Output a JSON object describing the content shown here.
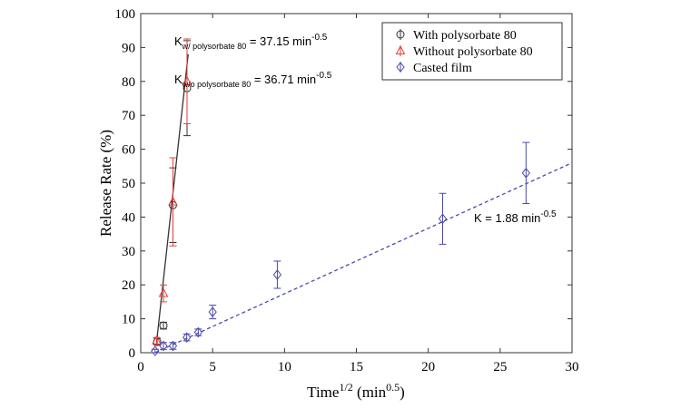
{
  "chart_data": {
    "type": "scatter",
    "x_label": {
      "main": "Time",
      "sup": "1/2",
      "rest": " (min",
      "sup2": "0.5",
      "end": ")"
    },
    "y_label": "Release Rate (%)",
    "xlim": [
      0,
      30
    ],
    "xticks": [
      0,
      5,
      10,
      15,
      20,
      25,
      30
    ],
    "ylim": [
      0,
      100
    ],
    "yticks": [
      0,
      10,
      20,
      30,
      40,
      50,
      60,
      70,
      80,
      90,
      100
    ],
    "legend": "upper right",
    "series": [
      {
        "name": "With polysorbate 80",
        "color": "#333333",
        "marker": "circle",
        "x": [
          1.14,
          1.58,
          2.24,
          3.22
        ],
        "values": [
          3.2,
          8,
          43.5,
          78
        ],
        "errors": [
          1,
          1,
          11,
          14
        ]
      },
      {
        "name": "Without polysorbate 80",
        "color": "#e8413a",
        "marker": "triangle",
        "x": [
          1.1,
          1.58,
          2.24,
          3.22
        ],
        "values": [
          3.5,
          17.5,
          44.5,
          80
        ],
        "errors": [
          1,
          2.5,
          13,
          12.5
        ]
      },
      {
        "name": "Casted film",
        "color": "#4a4aa8",
        "marker": "diamond",
        "x": [
          1.0,
          1.58,
          2.24,
          3.2,
          4.0,
          5.0,
          9.5,
          21,
          26.8
        ],
        "values": [
          0.5,
          2,
          2,
          4.5,
          6,
          12,
          23,
          39.5,
          53
        ],
        "errors": [
          0.5,
          1,
          1,
          1,
          1,
          2,
          4,
          7.5,
          9
        ]
      }
    ],
    "fits": [
      {
        "color": "#333333",
        "dashed": false,
        "x": [
          1.1,
          3.3
        ],
        "values": [
          3,
          88
        ]
      },
      {
        "color": "#4a4aa8",
        "dashed": true,
        "x": [
          1.0,
          30
        ],
        "values": [
          0,
          56
        ]
      }
    ],
    "annotations": [
      {
        "main": "K",
        "sub": "w/ polysorbate 80",
        "rest": " = 37.15 min",
        "sup": "-0.5"
      },
      {
        "main": "K",
        "sub": "w/o polysorbate 80",
        "rest": " = 36.71 min",
        "sup": "-0.5"
      },
      {
        "main": "K",
        "sub": "",
        "rest": " = 1.88 min",
        "sup": "-0.5"
      }
    ]
  }
}
